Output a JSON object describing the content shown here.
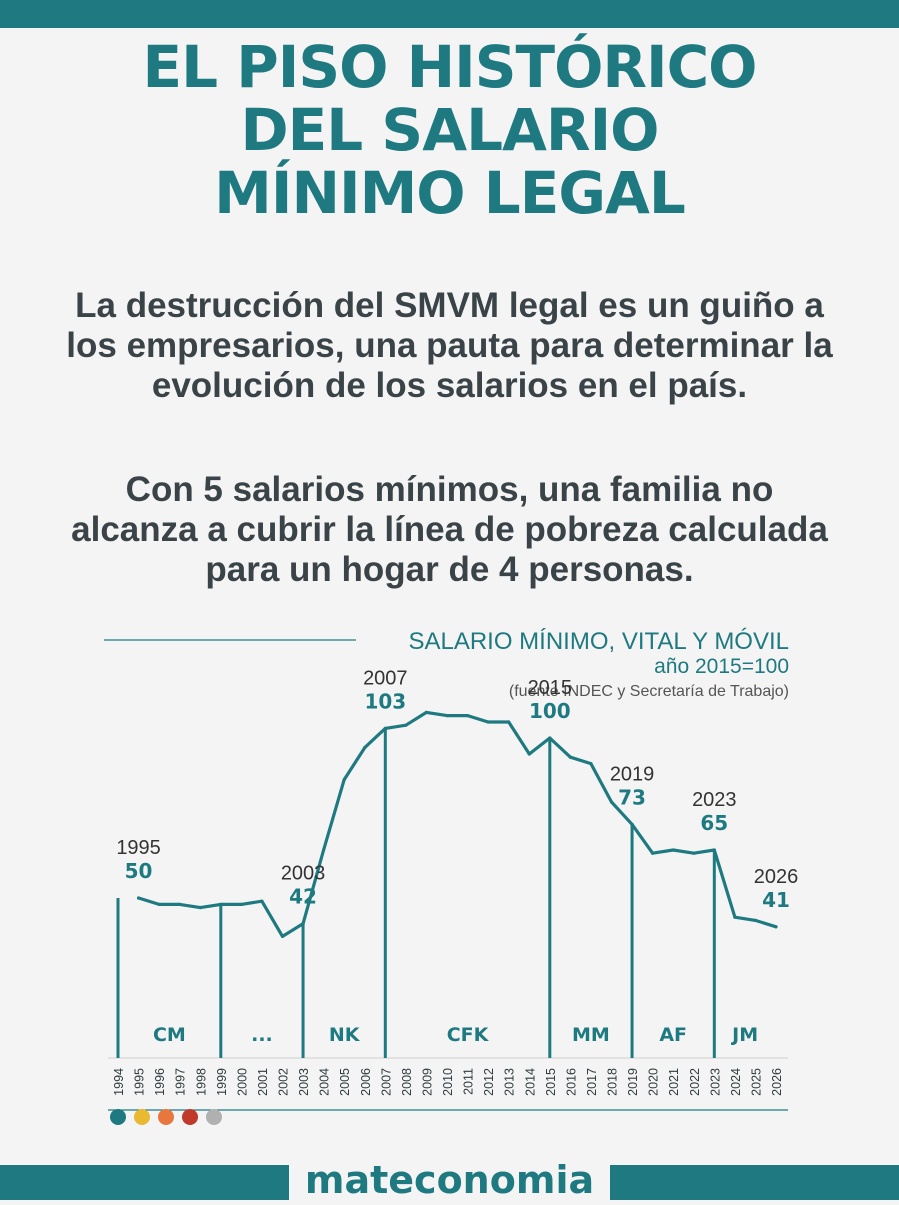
{
  "header": {
    "title_lines": [
      "EL PISO HISTÓRICO",
      "DEL SALARIO",
      "MÍNIMO LEGAL"
    ]
  },
  "body": {
    "paragraph1": "La destrucción del SMVM legal es un guiño a los empresarios, una pauta para determinar la evolución de los salarios en el país.",
    "paragraph2": "Con 5 salarios mínimos, una familia no alcanza a cubrir la línea de pobreza calculada para un hogar de 4 personas."
  },
  "footer": {
    "brand": "mateconomia"
  },
  "colors": {
    "accent": "#1e7a80",
    "text": "#3a4448",
    "background": "#f4f4f4",
    "dots": [
      "#1e7a80",
      "#e8b931",
      "#e8773e",
      "#c0392b",
      "#b0b0b0"
    ]
  },
  "chart_data": {
    "type": "line",
    "title": "SALARIO MÍNIMO, VITAL Y MÓVIL",
    "subtitle": "año 2015=100",
    "source": "(fuente INDEC y Secretaría de Trabajo)",
    "x": [
      1994,
      1995,
      1996,
      1997,
      1998,
      1999,
      2000,
      2001,
      2002,
      2003,
      2004,
      2005,
      2006,
      2007,
      2008,
      2009,
      2010,
      2011,
      2012,
      2013,
      2014,
      2015,
      2016,
      2017,
      2018,
      2019,
      2020,
      2021,
      2022,
      2023,
      2024,
      2025,
      2026
    ],
    "values": [
      null,
      50,
      48,
      48,
      47,
      48,
      48,
      49,
      38,
      42,
      65,
      87,
      97,
      103,
      104,
      108,
      107,
      107,
      105,
      105,
      95,
      100,
      94,
      92,
      80,
      73,
      64,
      65,
      64,
      65,
      44,
      43,
      41
    ],
    "ylim": [
      0,
      115
    ],
    "annotations": [
      {
        "year": "1995",
        "value": "50"
      },
      {
        "year": "2003",
        "value": "42"
      },
      {
        "year": "2007",
        "value": "103"
      },
      {
        "year": "2015",
        "value": "100"
      },
      {
        "year": "2019",
        "value": "73"
      },
      {
        "year": "2023",
        "value": "65"
      },
      {
        "year": "2026",
        "value": "41"
      }
    ],
    "dividers": [
      1999,
      2003,
      2007,
      2015,
      2019,
      2023
    ],
    "periods": [
      {
        "label": "CM",
        "start": 1994,
        "end": 1999
      },
      {
        "label": "...",
        "start": 1999,
        "end": 2003
      },
      {
        "label": "NK",
        "start": 2003,
        "end": 2007
      },
      {
        "label": "CFK",
        "start": 2007,
        "end": 2015
      },
      {
        "label": "MM",
        "start": 2015,
        "end": 2019
      },
      {
        "label": "AF",
        "start": 2019,
        "end": 2023
      },
      {
        "label": "JM",
        "start": 2023,
        "end": 2026
      }
    ],
    "grid": false,
    "legend": "none"
  }
}
